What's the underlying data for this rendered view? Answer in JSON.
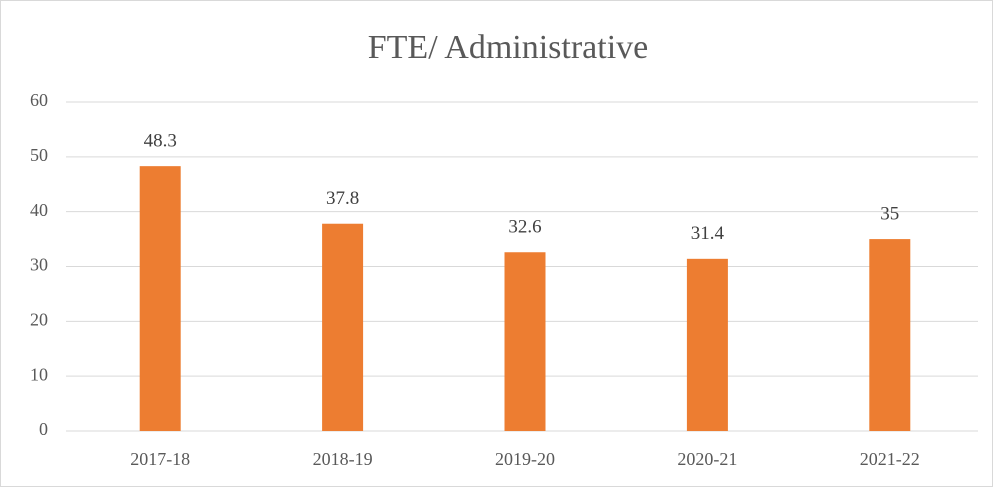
{
  "chart_data": {
    "type": "bar",
    "title": "FTE/ Administrative",
    "categories": [
      "2017-18",
      "2018-19",
      "2019-20",
      "2020-21",
      "2021-22"
    ],
    "values": [
      48.3,
      37.8,
      32.6,
      31.4,
      35
    ],
    "color": "#ed7d31",
    "ylim": [
      0,
      60
    ],
    "yticks": [
      0,
      10,
      20,
      30,
      40,
      50,
      60
    ],
    "grid": true
  }
}
